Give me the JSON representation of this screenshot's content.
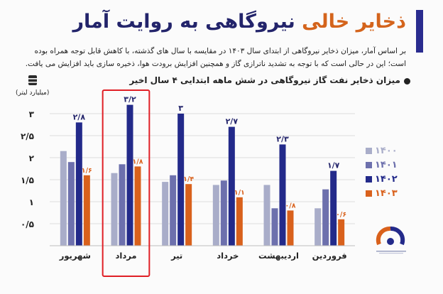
{
  "header": {
    "title_highlight": "ذخایر خالی",
    "title_rest": " نیروگاهی به روایت آمار",
    "description_lines": [
      "بر اساس آمار، میزان ذخایر نیروگاهی از ابتدای سال ۱۴۰۳ در مقایسه با سال های گذشته، با کاهش قابل توجه همراه بوده",
      "است؛ این در حالی است که با توجه به تشدید ناترازی گاز و همچنین افزایش برودت هوا، ذخیره سازی باید افزایش می یافت."
    ]
  },
  "colors": {
    "y1400": "#a9adc9",
    "y1401": "#6d70ad",
    "y1402": "#232a8a",
    "y1403": "#d9611c",
    "title_accent": "#d4641c",
    "title_dark": "#23246b",
    "highlight_box": "#e01f26",
    "annotation": "#23246b",
    "grid": "#dedede"
  },
  "chart_data": {
    "type": "bar",
    "title": "میزان ذخایر نفت گاز نیروگاهی در شش ماهه ابتدایی ۴ سال اخیر",
    "ylabel": "(میلیارد لیتر)",
    "ylim": [
      0,
      3
    ],
    "yticks": [
      {
        "value": 0.5,
        "label": "۰/۵"
      },
      {
        "value": 1,
        "label": "۱"
      },
      {
        "value": 1.5,
        "label": "۱/۵"
      },
      {
        "value": 2,
        "label": "۲"
      },
      {
        "value": 2.5,
        "label": "۲/۵"
      },
      {
        "value": 3,
        "label": "۳"
      }
    ],
    "categories": [
      "فروردین",
      "اردیبهشت",
      "خرداد",
      "تیر",
      "مرداد",
      "شهریور"
    ],
    "highlighted_category": "مرداد",
    "series": [
      {
        "name": "۱۴۰۰",
        "color": "#a9adc9",
        "values": [
          0.85,
          1.38,
          1.38,
          1.45,
          1.65,
          2.15
        ]
      },
      {
        "name": "۱۴۰۱",
        "color": "#6d70ad",
        "values": [
          1.28,
          0.85,
          1.48,
          1.6,
          1.85,
          1.9
        ]
      },
      {
        "name": "۱۴۰۲",
        "color": "#232a8a",
        "values": [
          1.7,
          2.3,
          2.7,
          3.0,
          3.2,
          2.8
        ]
      },
      {
        "name": "۱۴۰۳",
        "color": "#d9611c",
        "values": [
          0.6,
          0.8,
          1.1,
          1.4,
          1.8,
          1.6
        ]
      }
    ],
    "data_labels": [
      {
        "series": "۱۴۰۲",
        "labels": [
          "۱/۷",
          "۲/۳",
          "۲/۷",
          "۳",
          "۳/۲",
          "۲/۸"
        ]
      },
      {
        "series": "۱۴۰۳",
        "labels": [
          "۰/۶",
          "۰/۸",
          "۱/۱",
          "۱/۴",
          "۱/۸",
          "۱/۶"
        ]
      }
    ],
    "grid": true,
    "legend_position": "right"
  }
}
